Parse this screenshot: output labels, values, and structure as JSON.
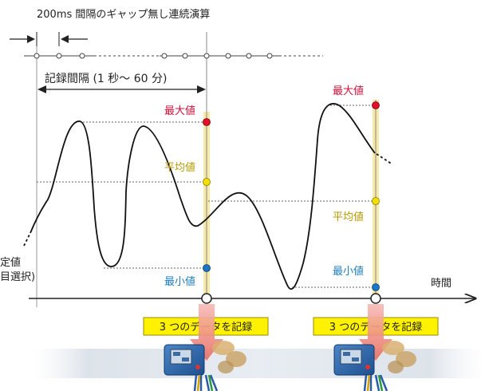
{
  "header": {
    "continuous_label": "200ms 間隔のギャップ無し連続演算",
    "interval_label": "記録間隔 (1 秒～ 60 分)"
  },
  "left_label": {
    "line1": "定値",
    "line2": "目選択)"
  },
  "axis": {
    "time_label": "時間"
  },
  "record1": {
    "max_label": "最大値",
    "avg_label": "平均値",
    "min_label": "最小値",
    "box_label": "3 つのデータを記録"
  },
  "record2": {
    "max_label": "最大値",
    "avg_label": "平均値",
    "min_label": "最小値",
    "box_label": "3 つのデータを記録"
  },
  "colors": {
    "max": "#d0103a",
    "avg": "#b89a00",
    "min": "#1f7fc0",
    "record_box": "#fff200",
    "highlight_column": "#f7e9a8",
    "dot_max": "#e0102a",
    "dot_avg": "#f4e000",
    "dot_min": "#1a75c6"
  },
  "icons": {
    "device": "measuring-instrument-image",
    "arrow": "record-down-arrow"
  }
}
